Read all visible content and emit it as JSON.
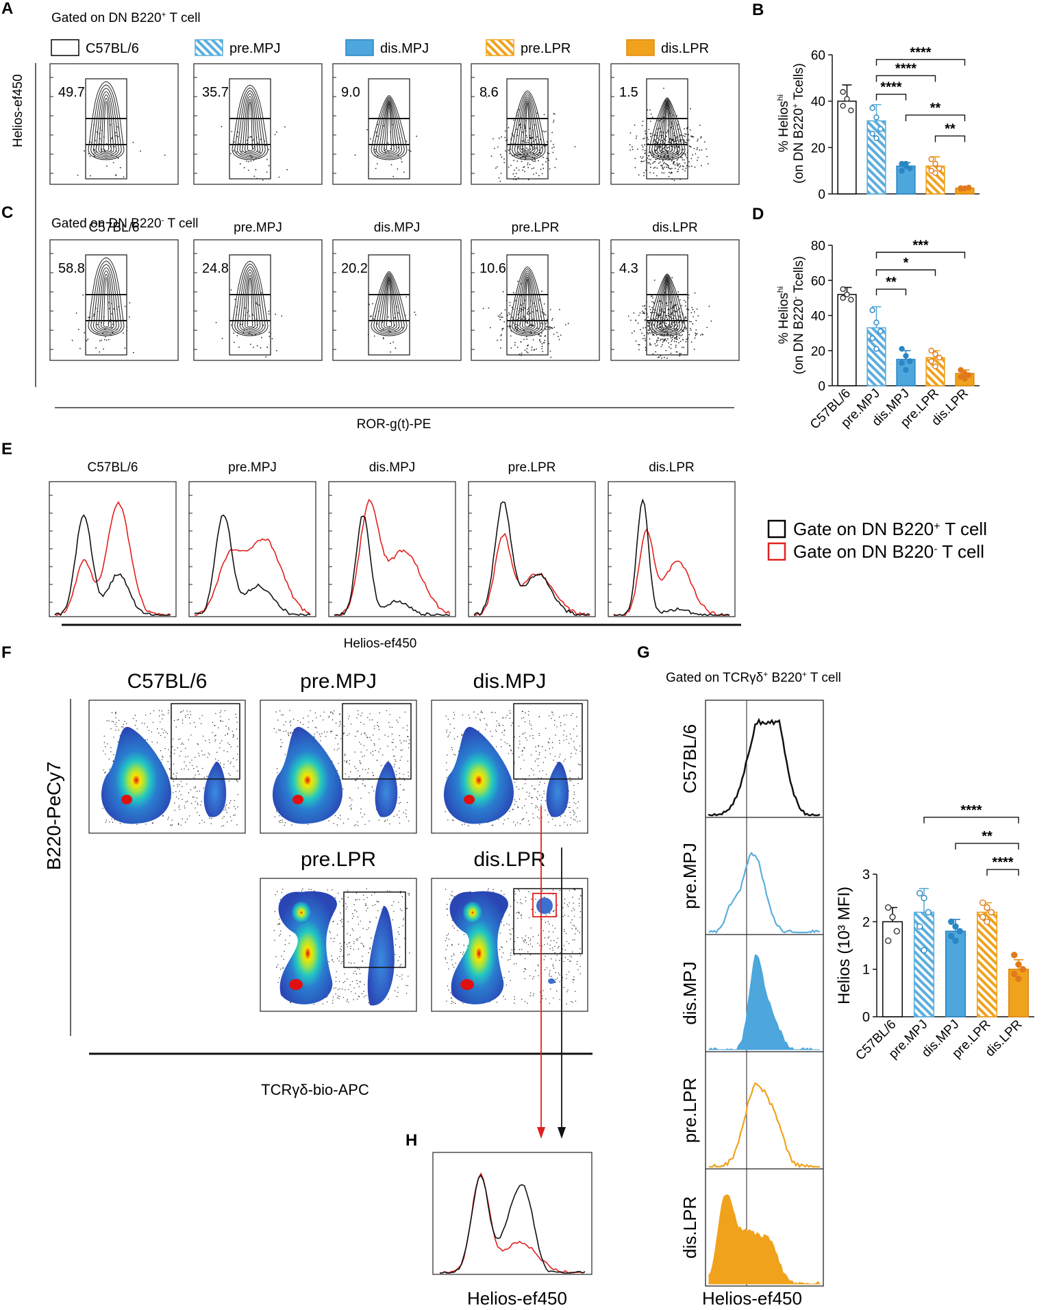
{
  "panel_letters": [
    "A",
    "B",
    "C",
    "D",
    "E",
    "F",
    "G",
    "H"
  ],
  "colors": {
    "c57": "#000000",
    "mpj": "#5aaedd",
    "mpj_fill": "#4da6dc",
    "lpr": "#f0a21c",
    "lpr_fill": "#f0a21c",
    "lpr_dark": "#e07a1a",
    "b220pos": "#000000",
    "b220neg": "#e0201e"
  },
  "legend_top": [
    {
      "label": "C57BL/6",
      "style": "open"
    },
    {
      "label": "pre.MPJ",
      "style": "hatch-blue"
    },
    {
      "label": "dis.MPJ",
      "style": "solid-blue"
    },
    {
      "label": "pre.LPR",
      "style": "hatch-orange"
    },
    {
      "label": "dis.LPR",
      "style": "solid-orange"
    }
  ],
  "panel_A": {
    "gate_title_pre": "Gated on DN B220",
    "gate_title_sup": "+",
    "gate_title_post": " T cell",
    "ylabel": "Helios-ef450",
    "values": [
      "49.7",
      "35.7",
      "9.0",
      "8.6",
      "1.5"
    ]
  },
  "panel_C": {
    "gate_title_pre": "Gated on DN B220",
    "gate_title_sup": "-",
    "gate_title_post": " T cell",
    "groups": [
      "C57BL/6",
      "pre.MPJ",
      "dis.MPJ",
      "pre.LPR",
      "dis.LPR"
    ],
    "values": [
      "58.8",
      "24.8",
      "20.2",
      "10.6",
      "4.3"
    ],
    "xlabel": "ROR-g(t)-PE"
  },
  "panel_E": {
    "groups": [
      "C57BL/6",
      "pre.MPJ",
      "dis.MPJ",
      "pre.LPR",
      "dis.LPR"
    ],
    "xlabel": "Helios-ef450",
    "legend": [
      {
        "pre": "Gate on DN B220",
        "sup": "+",
        "post": " T cell"
      },
      {
        "pre": "Gate on DN B220",
        "sup": "-",
        "post": " T cell"
      }
    ]
  },
  "panel_F": {
    "groups_top": [
      "C57BL/6",
      "pre.MPJ",
      "dis.MPJ"
    ],
    "groups_bottom": [
      "pre.LPR",
      "dis.LPR"
    ],
    "ylabel": "B220-PeCy7",
    "xlabel": "TCRγδ-bio-APC"
  },
  "panel_G": {
    "gate_title_pre": "Gated on TCRγδ",
    "gate_title_sup1": "+",
    "gate_title_mid": " B220",
    "gate_title_sup2": "+",
    "gate_title_post": " T cell",
    "rows": [
      "C57BL/6",
      "pre.MPJ",
      "dis.MPJ",
      "pre.LPR",
      "dis.LPR"
    ],
    "xlabel": "Helios-ef450"
  },
  "panel_H": {
    "xlabel": "Helios-ef450"
  },
  "chart_data": [
    {
      "id": "B",
      "type": "bar",
      "ylabel_l1": "% Helios",
      "ylabel_sup": "hi",
      "ylabel_l2_pre": "(on DN B220",
      "ylabel_l2_sup": "+",
      "ylabel_l2_post": " Tcells)",
      "categories": [
        "C57BL/6",
        "pre.MPJ",
        "dis.MPJ",
        "pre.LPR",
        "dis.LPR"
      ],
      "values": [
        40,
        31.5,
        12,
        12,
        2.5
      ],
      "errors": [
        7,
        7,
        1.5,
        4,
        0.5
      ],
      "points": [
        [
          44,
          41,
          36,
          38
        ],
        [
          37,
          33,
          28,
          26,
          24
        ],
        [
          13,
          12,
          11,
          10,
          13
        ],
        [
          15,
          13,
          11,
          10,
          9
        ],
        [
          2.5,
          2.3,
          2.7,
          2.2,
          2.4
        ]
      ],
      "ylim": [
        0,
        60
      ],
      "yticks": [
        0,
        20,
        40,
        60
      ],
      "ytick_labels": [
        "0",
        "20",
        "40",
        "60"
      ],
      "significance": [
        {
          "from": 1,
          "to": 4,
          "label": "****",
          "level": 58
        },
        {
          "from": 1,
          "to": 3,
          "label": "****",
          "level": 51
        },
        {
          "from": 1,
          "to": 2,
          "label": "****",
          "level": 43
        },
        {
          "from": 2,
          "to": 4,
          "label": "**",
          "level": 34
        },
        {
          "from": 3,
          "to": 4,
          "label": "**",
          "level": 25
        }
      ]
    },
    {
      "id": "D",
      "type": "bar",
      "ylabel_l1": "% Helios",
      "ylabel_sup": "hi",
      "ylabel_l2_pre": "(on DN B220",
      "ylabel_l2_sup": "-",
      "ylabel_l2_post": " Tcells)",
      "categories": [
        "C57BL/6",
        "pre.MPJ",
        "dis.MPJ",
        "pre.LPR",
        "dis.LPR"
      ],
      "values": [
        52,
        33,
        15,
        16,
        7
      ],
      "errors": [
        4,
        12,
        5,
        4,
        2
      ],
      "points": [
        [
          55,
          52,
          49,
          50
        ],
        [
          43,
          36,
          31,
          27,
          21
        ],
        [
          21,
          17,
          14,
          13,
          9
        ],
        [
          20,
          18,
          16,
          14,
          11
        ],
        [
          9,
          7,
          6,
          5,
          4
        ]
      ],
      "ylim": [
        0,
        80
      ],
      "yticks": [
        0,
        20,
        40,
        60,
        80
      ],
      "ytick_labels": [
        "0",
        "20",
        "40",
        "60",
        "80"
      ],
      "significance": [
        {
          "from": 1,
          "to": 4,
          "label": "***",
          "level": 76
        },
        {
          "from": 1,
          "to": 3,
          "label": "*",
          "level": 66
        },
        {
          "from": 1,
          "to": 2,
          "label": "**",
          "level": 55
        }
      ]
    },
    {
      "id": "G",
      "type": "bar",
      "ylabel": "Helios (10³ MFI)",
      "categories": [
        "C57BL/6",
        "pre.MPJ",
        "dis.MPJ",
        "pre.LPR",
        "dis.LPR"
      ],
      "values": [
        2.0,
        2.2,
        1.8,
        2.2,
        1.0
      ],
      "errors": [
        0.3,
        0.5,
        0.25,
        0.2,
        0.2
      ],
      "points": [
        [
          2.3,
          2.1,
          1.8,
          1.6
        ],
        [
          2.6,
          2.5,
          2.2,
          1.9,
          1.4
        ],
        [
          2.0,
          1.9,
          1.8,
          1.7,
          1.6
        ],
        [
          2.4,
          2.3,
          2.2,
          2.1,
          2.0
        ],
        [
          1.3,
          1.1,
          1.0,
          0.9,
          0.8
        ]
      ],
      "ylim": [
        0,
        3
      ],
      "yticks": [
        0,
        1,
        2,
        3
      ],
      "ytick_labels": [
        "0",
        "1",
        "2",
        "3"
      ],
      "significance": [
        {
          "from": 1,
          "to": 4,
          "label": "****",
          "level": 4.2
        },
        {
          "from": 2,
          "to": 4,
          "label": "**",
          "level": 3.65
        },
        {
          "from": 3,
          "to": 4,
          "label": "****",
          "level": 3.1
        }
      ]
    }
  ]
}
